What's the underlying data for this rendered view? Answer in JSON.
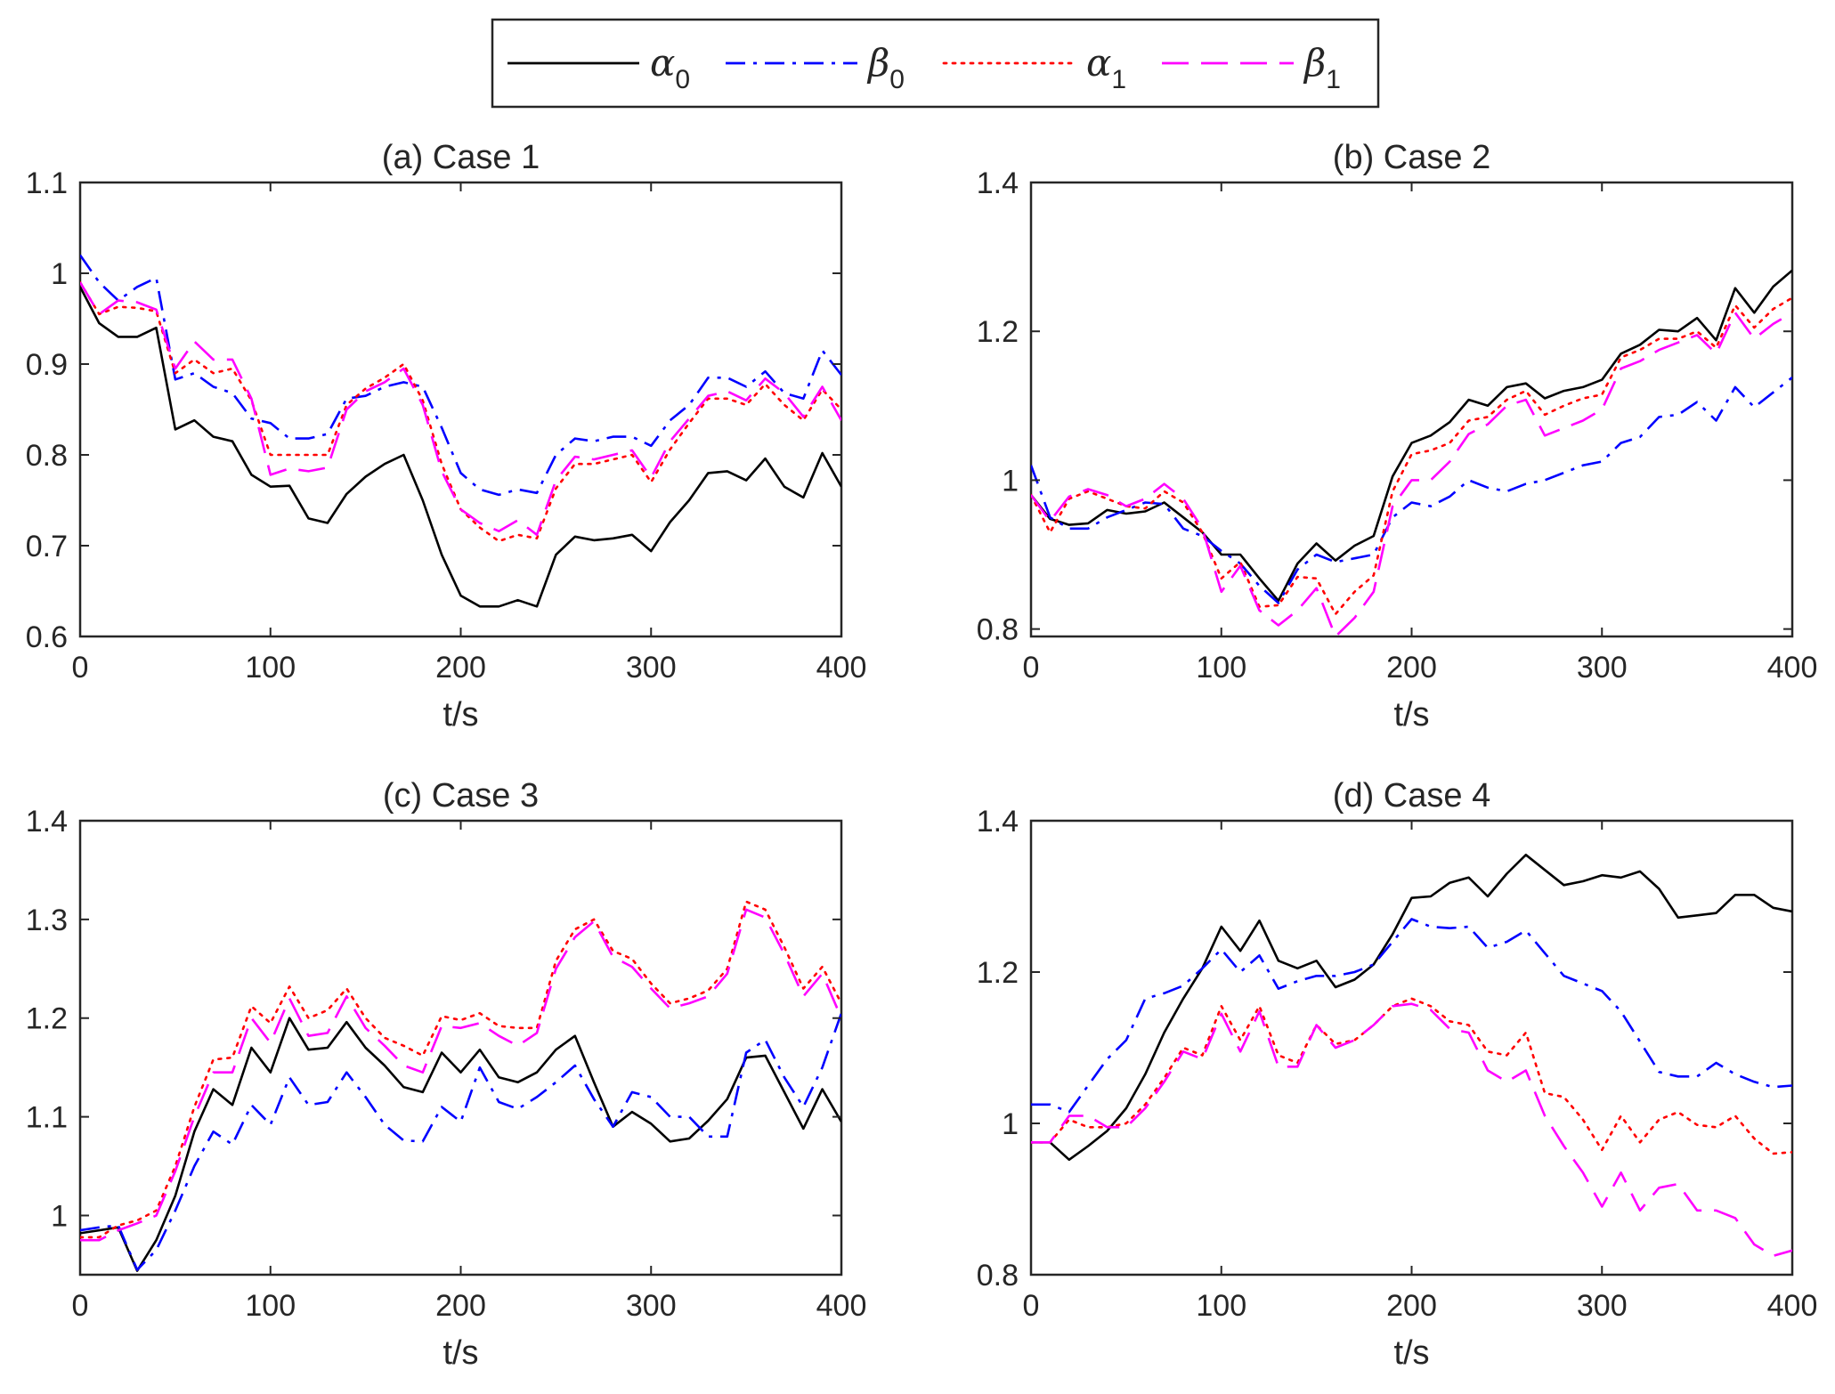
{
  "figure": {
    "background": "#ffffff",
    "axis_color": "#262626"
  },
  "legend": {
    "location": "top-center",
    "entries": [
      {
        "symbol": "α",
        "sub": "0",
        "color": "#000000",
        "dash": "solid"
      },
      {
        "symbol": "β",
        "sub": "0",
        "color": "#0000ff",
        "dash": "dashdot"
      },
      {
        "symbol": "α",
        "sub": "1",
        "color": "#ff0000",
        "dash": "dotted"
      },
      {
        "symbol": "β",
        "sub": "1",
        "color": "#ff00ff",
        "dash": "dashed"
      }
    ]
  },
  "chart_data": [
    {
      "type": "line",
      "title": "(a) Case 1",
      "xlabel": "t/s",
      "ylabel": "",
      "xlim": [
        0,
        400
      ],
      "ylim": [
        0.6,
        1.1
      ],
      "xticks": [
        "0",
        "100",
        "200",
        "300",
        "400"
      ],
      "yticks": [
        "0.6",
        "0.7",
        "0.8",
        "0.9",
        "1",
        "1.1"
      ],
      "grid": false,
      "x": [
        0,
        10,
        20,
        30,
        40,
        50,
        60,
        70,
        80,
        90,
        100,
        110,
        120,
        130,
        140,
        150,
        160,
        170,
        180,
        190,
        200,
        210,
        220,
        230,
        240,
        250,
        260,
        270,
        280,
        290,
        300,
        310,
        320,
        330,
        340,
        350,
        360,
        370,
        380,
        390,
        400
      ],
      "series": [
        {
          "name": "α0",
          "values": [
            0.985,
            0.945,
            0.93,
            0.93,
            0.94,
            0.828,
            0.838,
            0.82,
            0.815,
            0.778,
            0.765,
            0.766,
            0.73,
            0.725,
            0.757,
            0.776,
            0.79,
            0.8,
            0.75,
            0.69,
            0.645,
            0.633,
            0.633,
            0.64,
            0.633,
            0.69,
            0.71,
            0.706,
            0.708,
            0.712,
            0.694,
            0.726,
            0.75,
            0.78,
            0.782,
            0.772,
            0.796,
            0.765,
            0.753,
            0.802,
            0.765
          ]
        },
        {
          "name": "β0",
          "values": [
            1.02,
            0.99,
            0.97,
            0.985,
            0.995,
            0.883,
            0.89,
            0.875,
            0.868,
            0.84,
            0.835,
            0.818,
            0.818,
            0.823,
            0.862,
            0.865,
            0.875,
            0.88,
            0.875,
            0.83,
            0.78,
            0.762,
            0.756,
            0.762,
            0.758,
            0.8,
            0.818,
            0.815,
            0.82,
            0.82,
            0.81,
            0.838,
            0.855,
            0.885,
            0.885,
            0.875,
            0.892,
            0.868,
            0.862,
            0.915,
            0.888
          ]
        },
        {
          "name": "α1",
          "values": [
            0.99,
            0.955,
            0.963,
            0.962,
            0.958,
            0.89,
            0.905,
            0.89,
            0.895,
            0.86,
            0.8,
            0.8,
            0.8,
            0.8,
            0.855,
            0.873,
            0.885,
            0.9,
            0.86,
            0.79,
            0.74,
            0.72,
            0.705,
            0.712,
            0.708,
            0.763,
            0.79,
            0.79,
            0.795,
            0.8,
            0.77,
            0.806,
            0.835,
            0.862,
            0.862,
            0.855,
            0.878,
            0.855,
            0.838,
            0.872,
            0.85
          ]
        },
        {
          "name": "β1",
          "values": [
            0.99,
            0.955,
            0.97,
            0.968,
            0.96,
            0.895,
            0.925,
            0.905,
            0.905,
            0.862,
            0.778,
            0.785,
            0.782,
            0.786,
            0.85,
            0.87,
            0.88,
            0.895,
            0.855,
            0.782,
            0.74,
            0.725,
            0.716,
            0.728,
            0.712,
            0.772,
            0.798,
            0.795,
            0.8,
            0.805,
            0.775,
            0.815,
            0.84,
            0.865,
            0.87,
            0.86,
            0.884,
            0.868,
            0.842,
            0.875,
            0.838
          ]
        }
      ]
    },
    {
      "type": "line",
      "title": "(b) Case 2",
      "xlabel": "t/s",
      "ylabel": "",
      "xlim": [
        0,
        400
      ],
      "ylim": [
        0.79,
        1.4
      ],
      "xticks": [
        "0",
        "100",
        "200",
        "300",
        "400"
      ],
      "yticks": [
        "0.8",
        "1",
        "1.2",
        "1.4"
      ],
      "grid": false,
      "x": [
        0,
        10,
        20,
        30,
        40,
        50,
        60,
        70,
        80,
        90,
        100,
        110,
        120,
        130,
        140,
        150,
        160,
        170,
        180,
        190,
        200,
        210,
        220,
        230,
        240,
        250,
        260,
        270,
        280,
        290,
        300,
        310,
        320,
        330,
        340,
        350,
        360,
        370,
        380,
        390,
        400
      ],
      "series": [
        {
          "name": "α0",
          "values": [
            0.98,
            0.948,
            0.94,
            0.942,
            0.96,
            0.955,
            0.958,
            0.97,
            0.95,
            0.93,
            0.9,
            0.9,
            0.868,
            0.838,
            0.888,
            0.915,
            0.892,
            0.912,
            0.925,
            1.005,
            1.05,
            1.06,
            1.078,
            1.108,
            1.1,
            1.125,
            1.13,
            1.11,
            1.12,
            1.125,
            1.135,
            1.17,
            1.182,
            1.202,
            1.2,
            1.218,
            1.188,
            1.258,
            1.225,
            1.26,
            1.282
          ]
        },
        {
          "name": "β0",
          "values": [
            1.02,
            0.95,
            0.935,
            0.935,
            0.95,
            0.96,
            0.97,
            0.968,
            0.935,
            0.925,
            0.905,
            0.888,
            0.858,
            0.835,
            0.88,
            0.9,
            0.89,
            0.895,
            0.9,
            0.95,
            0.97,
            0.965,
            0.978,
            1.0,
            0.99,
            0.985,
            0.995,
            1.0,
            1.01,
            1.02,
            1.025,
            1.05,
            1.058,
            1.085,
            1.088,
            1.105,
            1.08,
            1.125,
            1.098,
            1.118,
            1.138
          ]
        },
        {
          "name": "α1",
          "values": [
            0.98,
            0.93,
            0.975,
            0.985,
            0.975,
            0.965,
            0.962,
            0.985,
            0.97,
            0.93,
            0.868,
            0.89,
            0.83,
            0.832,
            0.87,
            0.868,
            0.82,
            0.85,
            0.872,
            0.985,
            1.035,
            1.04,
            1.05,
            1.08,
            1.085,
            1.108,
            1.12,
            1.088,
            1.1,
            1.11,
            1.115,
            1.165,
            1.175,
            1.19,
            1.19,
            1.2,
            1.178,
            1.235,
            1.205,
            1.23,
            1.245
          ]
        },
        {
          "name": "β1",
          "values": [
            0.98,
            0.945,
            0.978,
            0.988,
            0.98,
            0.965,
            0.975,
            0.995,
            0.975,
            0.935,
            0.85,
            0.885,
            0.825,
            0.805,
            0.825,
            0.855,
            0.79,
            0.815,
            0.85,
            0.965,
            1.0,
            1.0,
            1.025,
            1.062,
            1.075,
            1.1,
            1.108,
            1.06,
            1.07,
            1.08,
            1.095,
            1.15,
            1.16,
            1.175,
            1.185,
            1.195,
            1.17,
            1.225,
            1.19,
            1.21,
            1.225
          ]
        }
      ]
    },
    {
      "type": "line",
      "title": "(c) Case 3",
      "xlabel": "t/s",
      "ylabel": "",
      "xlim": [
        0,
        400
      ],
      "ylim": [
        0.94,
        1.4
      ],
      "xticks": [
        "0",
        "100",
        "200",
        "300",
        "400"
      ],
      "yticks": [
        "1",
        "1.1",
        "1.2",
        "1.3",
        "1.4"
      ],
      "grid": false,
      "x": [
        0,
        10,
        20,
        30,
        40,
        50,
        60,
        70,
        80,
        90,
        100,
        110,
        120,
        130,
        140,
        150,
        160,
        170,
        180,
        190,
        200,
        210,
        220,
        230,
        240,
        250,
        260,
        270,
        280,
        290,
        300,
        310,
        320,
        330,
        340,
        350,
        360,
        370,
        380,
        390,
        400
      ],
      "series": [
        {
          "name": "α0",
          "values": [
            0.982,
            0.985,
            0.988,
            0.944,
            0.975,
            1.02,
            1.085,
            1.128,
            1.112,
            1.17,
            1.145,
            1.2,
            1.168,
            1.17,
            1.196,
            1.17,
            1.152,
            1.13,
            1.125,
            1.165,
            1.145,
            1.168,
            1.14,
            1.135,
            1.145,
            1.168,
            1.182,
            1.135,
            1.09,
            1.105,
            1.093,
            1.075,
            1.078,
            1.096,
            1.118,
            1.16,
            1.162,
            1.125,
            1.088,
            1.128,
            1.095
          ]
        },
        {
          "name": "β0",
          "values": [
            0.985,
            0.988,
            0.99,
            0.945,
            0.965,
            1.005,
            1.05,
            1.085,
            1.072,
            1.112,
            1.092,
            1.14,
            1.112,
            1.115,
            1.145,
            1.12,
            1.092,
            1.076,
            1.075,
            1.11,
            1.095,
            1.15,
            1.115,
            1.108,
            1.12,
            1.135,
            1.152,
            1.118,
            1.09,
            1.125,
            1.12,
            1.1,
            1.1,
            1.08,
            1.08,
            1.165,
            1.178,
            1.14,
            1.11,
            1.15,
            1.205
          ]
        },
        {
          "name": "α1",
          "values": [
            0.978,
            0.978,
            0.99,
            0.995,
            1.005,
            1.05,
            1.11,
            1.158,
            1.16,
            1.212,
            1.195,
            1.232,
            1.2,
            1.208,
            1.23,
            1.2,
            1.18,
            1.172,
            1.162,
            1.202,
            1.198,
            1.205,
            1.192,
            1.19,
            1.19,
            1.258,
            1.29,
            1.3,
            1.268,
            1.26,
            1.235,
            1.215,
            1.22,
            1.228,
            1.25,
            1.318,
            1.31,
            1.272,
            1.23,
            1.252,
            1.215
          ]
        },
        {
          "name": "β1",
          "values": [
            0.975,
            0.975,
            0.985,
            0.992,
            1.0,
            1.045,
            1.1,
            1.145,
            1.145,
            1.2,
            1.175,
            1.22,
            1.182,
            1.185,
            1.222,
            1.19,
            1.172,
            1.152,
            1.145,
            1.192,
            1.19,
            1.195,
            1.182,
            1.172,
            1.185,
            1.25,
            1.282,
            1.298,
            1.262,
            1.252,
            1.23,
            1.21,
            1.215,
            1.222,
            1.245,
            1.31,
            1.302,
            1.265,
            1.222,
            1.245,
            1.2
          ]
        }
      ]
    },
    {
      "type": "line",
      "title": "(d) Case 4",
      "xlabel": "t/s",
      "ylabel": "",
      "xlim": [
        0,
        400
      ],
      "ylim": [
        0.8,
        1.4
      ],
      "xticks": [
        "0",
        "100",
        "200",
        "300",
        "400"
      ],
      "yticks": [
        "0.8",
        "1",
        "1.2",
        "1.4"
      ],
      "grid": false,
      "x": [
        0,
        10,
        20,
        30,
        40,
        50,
        60,
        70,
        80,
        90,
        100,
        110,
        120,
        130,
        140,
        150,
        160,
        170,
        180,
        190,
        200,
        210,
        220,
        230,
        240,
        250,
        260,
        270,
        280,
        290,
        300,
        310,
        320,
        330,
        340,
        350,
        360,
        370,
        380,
        390,
        400
      ],
      "series": [
        {
          "name": "α0",
          "values": [
            0.975,
            0.975,
            0.952,
            0.97,
            0.99,
            1.02,
            1.065,
            1.12,
            1.165,
            1.205,
            1.26,
            1.228,
            1.268,
            1.215,
            1.205,
            1.215,
            1.18,
            1.19,
            1.21,
            1.25,
            1.298,
            1.3,
            1.318,
            1.325,
            1.3,
            1.33,
            1.355,
            1.335,
            1.315,
            1.32,
            1.328,
            1.325,
            1.333,
            1.31,
            1.272,
            1.275,
            1.278,
            1.302,
            1.302,
            1.285,
            1.28
          ]
        },
        {
          "name": "β0",
          "values": [
            1.025,
            1.025,
            1.015,
            1.05,
            1.085,
            1.11,
            1.165,
            1.172,
            1.182,
            1.205,
            1.23,
            1.2,
            1.222,
            1.178,
            1.188,
            1.195,
            1.195,
            1.2,
            1.21,
            1.24,
            1.27,
            1.26,
            1.258,
            1.26,
            1.232,
            1.24,
            1.255,
            1.225,
            1.195,
            1.185,
            1.175,
            1.148,
            1.108,
            1.068,
            1.062,
            1.062,
            1.08,
            1.065,
            1.055,
            1.048,
            1.05
          ]
        },
        {
          "name": "α1",
          "values": [
            0.975,
            0.975,
            1.005,
            0.995,
            0.995,
            1.0,
            1.025,
            1.06,
            1.1,
            1.09,
            1.155,
            1.11,
            1.155,
            1.09,
            1.08,
            1.13,
            1.105,
            1.11,
            1.13,
            1.155,
            1.165,
            1.155,
            1.135,
            1.13,
            1.095,
            1.09,
            1.12,
            1.04,
            1.035,
            1.005,
            0.965,
            1.01,
            0.975,
            1.005,
            1.015,
            0.998,
            0.995,
            1.01,
            0.98,
            0.96,
            0.962
          ]
        },
        {
          "name": "β1",
          "values": [
            0.975,
            0.975,
            1.01,
            1.01,
            0.995,
            0.995,
            1.02,
            1.055,
            1.095,
            1.085,
            1.145,
            1.095,
            1.148,
            1.075,
            1.075,
            1.13,
            1.1,
            1.11,
            1.13,
            1.155,
            1.158,
            1.15,
            1.125,
            1.12,
            1.07,
            1.055,
            1.07,
            1.01,
            0.97,
            0.935,
            0.89,
            0.935,
            0.885,
            0.915,
            0.92,
            0.885,
            0.885,
            0.875,
            0.84,
            0.825,
            0.832
          ]
        }
      ]
    }
  ]
}
